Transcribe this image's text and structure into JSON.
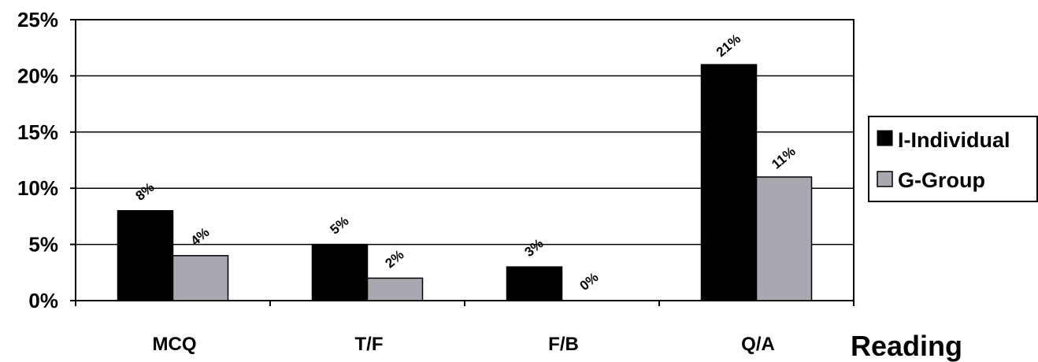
{
  "chart_data": {
    "type": "bar",
    "categories": [
      "MCQ",
      "T/F",
      "F/B",
      "Q/A"
    ],
    "series": [
      {
        "name": "I-Individual",
        "values": [
          8,
          5,
          3,
          21
        ],
        "labels": [
          "8%",
          "5%",
          "3%",
          "21%"
        ],
        "color": "#000000"
      },
      {
        "name": "G-Group",
        "values": [
          4,
          2,
          0,
          11
        ],
        "labels": [
          "4%",
          "2%",
          "0%",
          "11%"
        ],
        "color": "#a8a8b0"
      }
    ],
    "ylim": [
      0,
      25
    ],
    "yticks": [
      "0%",
      "5%",
      "10%",
      "15%",
      "20%",
      "25%"
    ],
    "xlabel": "Reading",
    "ylabel": "",
    "title": "",
    "grid": true,
    "legend": "right"
  }
}
